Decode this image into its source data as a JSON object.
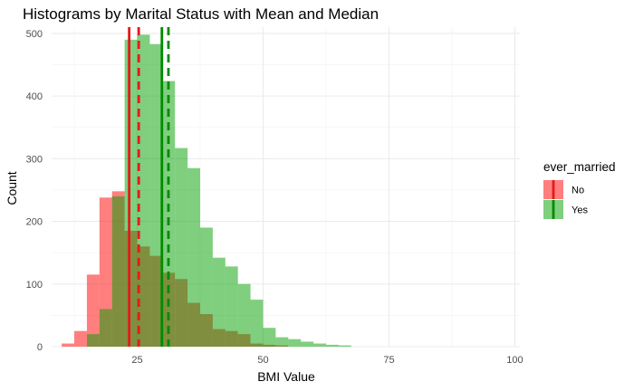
{
  "chart_data": {
    "type": "histogram",
    "title": "Histograms by Marital Status with Mean and Median",
    "xlabel": "BMI Value",
    "ylabel": "Count",
    "xlim": [
      8,
      101
    ],
    "ylim": [
      0,
      510
    ],
    "x_ticks": [
      25,
      50,
      75,
      100
    ],
    "y_ticks": [
      0,
      100,
      200,
      300,
      400,
      500
    ],
    "grid": true,
    "bin_width": 2.5,
    "bin_starts": [
      10,
      12.5,
      15,
      17.5,
      20,
      22.5,
      25,
      27.5,
      30,
      32.5,
      35,
      37.5,
      40,
      42.5,
      45,
      47.5,
      50,
      52.5,
      55,
      57.5,
      60,
      62.5,
      65
    ],
    "legend": {
      "title": "ever_married",
      "position": "right",
      "entries": [
        {
          "label": "No",
          "color": "#F8766D"
        },
        {
          "label": "Yes",
          "color": "#00BA38"
        }
      ]
    },
    "series": [
      {
        "name": "No",
        "color": "#FF0000",
        "opacity": 0.5,
        "values": [
          5,
          25,
          115,
          238,
          248,
          185,
          160,
          145,
          118,
          108,
          70,
          52,
          28,
          25,
          20,
          5,
          3,
          2,
          0,
          0,
          0,
          0,
          0
        ]
      },
      {
        "name": "Yes",
        "color": "#00A000",
        "opacity": 0.5,
        "values": [
          0,
          0,
          20,
          60,
          240,
          490,
          498,
          483,
          424,
          317,
          285,
          190,
          142,
          128,
          100,
          75,
          30,
          15,
          12,
          8,
          5,
          3,
          2
        ]
      }
    ],
    "reference_lines": [
      {
        "series": "No",
        "stat": "median",
        "x": 23.4,
        "style": "solid",
        "color": "#E41A1C"
      },
      {
        "series": "No",
        "stat": "mean",
        "x": 25.3,
        "style": "dashed",
        "color": "#E41A1C"
      },
      {
        "series": "Yes",
        "stat": "median",
        "x": 29.9,
        "style": "solid",
        "color": "#008B00"
      },
      {
        "series": "Yes",
        "stat": "mean",
        "x": 31.2,
        "style": "dashed",
        "color": "#008B00"
      }
    ]
  }
}
